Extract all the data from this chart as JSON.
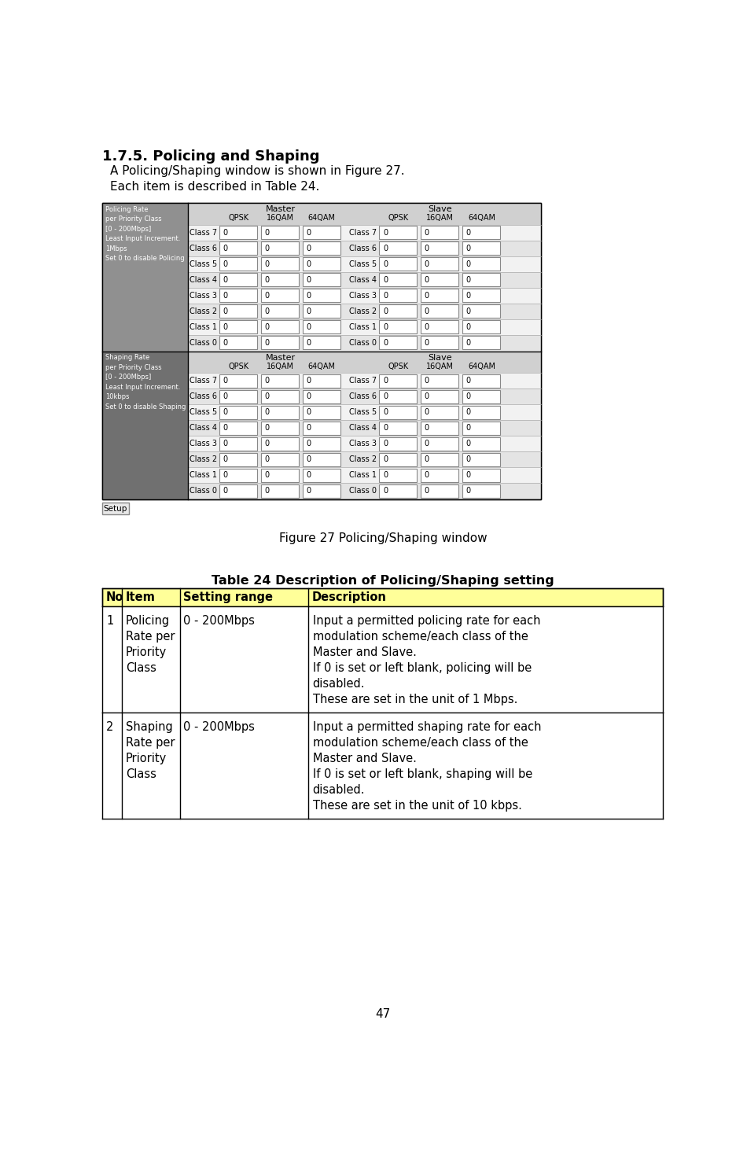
{
  "title": "1.7.5. Policing and Shaping",
  "para1": "A Policing/Shaping window is shown in Figure 27.",
  "para2": "Each item is described in Table 24.",
  "figure_caption": "Figure 27 Policing/Shaping window",
  "table_title": "Table 24 Description of Policing/Shaping setting",
  "table_header": [
    "No",
    "Item",
    "Setting range",
    "Description"
  ],
  "table_header_bg": "#ffff99",
  "table_rows": [
    {
      "no": "1",
      "item": [
        "Policing",
        "Rate per",
        "Priority",
        "Class"
      ],
      "range": "0 - 200Mbps",
      "desc_lines": [
        "Input a permitted policing rate for each",
        "modulation scheme/each class of the",
        "Master and Slave.",
        "If 0 is set or left blank, policing will be",
        "disabled.",
        "These are set in the unit of 1 Mbps."
      ]
    },
    {
      "no": "2",
      "item": [
        "Shaping",
        "Rate per",
        "Priority",
        "Class"
      ],
      "range": "0 - 200Mbps",
      "desc_lines": [
        "Input a permitted shaping rate for each",
        "modulation scheme/each class of the",
        "Master and Slave.",
        "If 0 is set or left blank, shaping will be",
        "disabled.",
        "These are set in the unit of 10 kbps."
      ]
    }
  ],
  "page_number": "47",
  "bg_color": "#ffffff",
  "sidebar_pol_color": "#909090",
  "sidebar_shp_color": "#707070",
  "header_bg": "#d0d0d0",
  "row_bg_even": "#f2f2f2",
  "row_bg_odd": "#e4e4e4"
}
